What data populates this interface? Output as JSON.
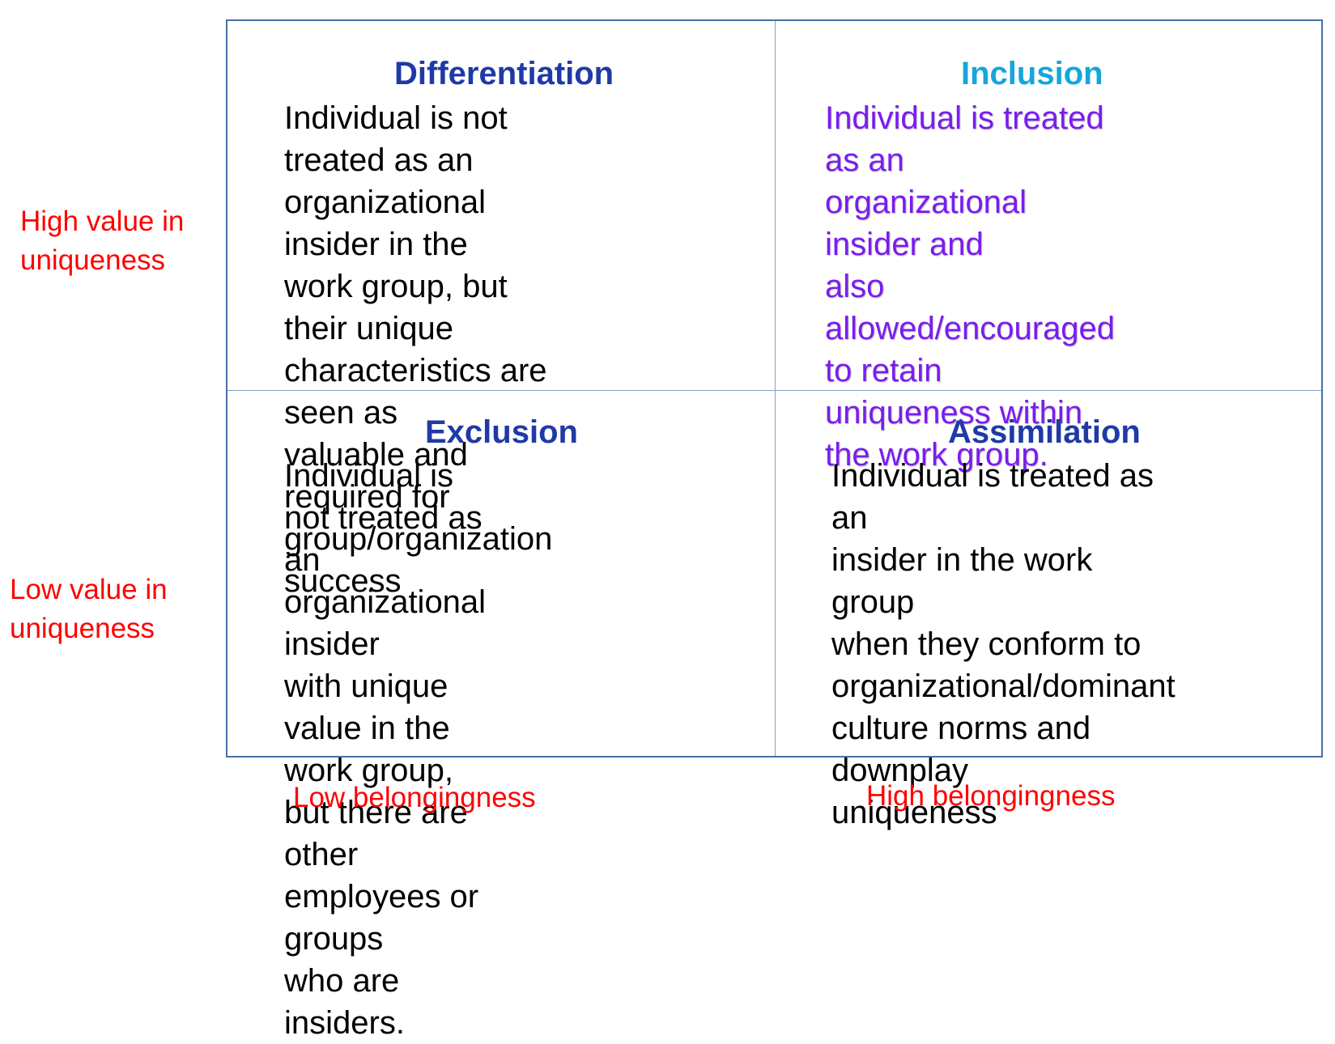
{
  "axis_labels": {
    "y_high": "High value in\nuniqueness",
    "y_low": "Low value in\nuniqueness",
    "x_low": "Low belongingness",
    "x_high": "High belongingness"
  },
  "quadrants": {
    "differentiation": {
      "title": "Differentiation",
      "title_color": "#1f3aa5",
      "body": "Individual is not treated as an\norganizational insider in the\nwork group, but their unique\ncharacteristics are seen as\nvaluable and required for\ngroup/organization success",
      "body_color": "#000000"
    },
    "inclusion": {
      "title": "Inclusion",
      "title_color": "#14a6dc",
      "body": "Individual is treated as an\norganizational insider and\nalso allowed/encouraged\nto retain uniqueness within\nthe work group.",
      "body_color": "#7a1cf0"
    },
    "exclusion": {
      "title": "Exclusion",
      "title_color": "#1f3aa5",
      "body": "Individual is not treated as\nan organizational insider\nwith unique value in the\nwork group, but there are\nother employees or groups\nwho are insiders.",
      "body_color": "#000000"
    },
    "assimilation": {
      "title": "Assimilation",
      "title_color": "#1f3aa5",
      "body": "Individual is treated as an\ninsider in the work group\nwhen they conform to\norganizational/dominant\nculture norms and downplay\nuniqueness",
      "body_color": "#000000"
    }
  },
  "colors": {
    "axis_label": "#ff0000",
    "grid_border": "#4a6fa5",
    "grid_divider": "#7ea4cf"
  }
}
